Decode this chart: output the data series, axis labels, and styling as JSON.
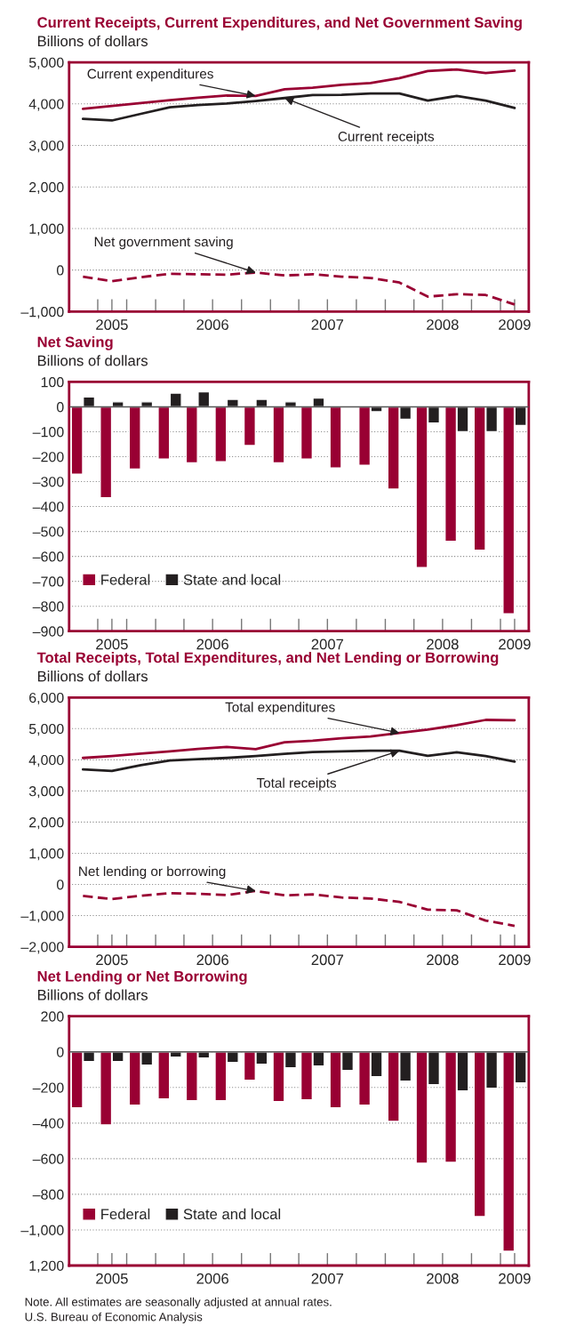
{
  "chart_data": [
    {
      "type": "line",
      "title": "Current Receipts, Current Expenditures, and Net Government Saving",
      "ylabel": "Billions of dollars",
      "x": [
        "2005-05-15",
        "2005-08-15",
        "2005-11-15",
        "2006-02-15",
        "2006-05-15",
        "2006-08-15",
        "2006-11-15",
        "2007-02-15",
        "2007-05-15",
        "2007-08-15",
        "2007-11-15",
        "2008-02-15",
        "2008-05-15",
        "2008-08-15",
        "2008-11-15",
        "2009-02-15"
      ],
      "series": [
        {
          "color": "#990033",
          "line_style": "solid",
          "values": [
            3880,
            3950,
            4020,
            4090,
            4150,
            4200,
            4190,
            4350,
            4390,
            4460,
            4500,
            4620,
            4790,
            4830,
            4740,
            4800
          ]
        },
        {
          "color": "#231f20",
          "line_style": "solid",
          "values": [
            3640,
            3600,
            3760,
            3920,
            3970,
            4010,
            4070,
            4140,
            4210,
            4220,
            4250,
            4250,
            4080,
            4190,
            4080,
            3900
          ]
        },
        {
          "color": "#990033",
          "line_style": "dashed",
          "values": [
            -160,
            -270,
            -170,
            -90,
            -100,
            -110,
            -60,
            -130,
            -100,
            -160,
            -190,
            -300,
            -640,
            -580,
            -600,
            -830
          ]
        }
      ],
      "xlim": [
        "2005-04-01",
        "2009-04-01"
      ],
      "xticks": [
        {
          "value": "2005-08-15",
          "label": "2005"
        },
        {
          "value": "2006-07-01",
          "label": "2006"
        },
        {
          "value": "2007-07-01",
          "label": "2007"
        },
        {
          "value": "2008-07-01",
          "label": "2008"
        },
        {
          "value": "2009-02-15",
          "label": "2009"
        },
        {
          "value": "2005-07-01",
          "label": null
        },
        {
          "value": "2005-10-01",
          "label": null
        },
        {
          "value": "2006-01-01",
          "label": null
        },
        {
          "value": "2006-04-01",
          "label": null
        },
        {
          "value": "2006-10-01",
          "label": null
        },
        {
          "value": "2007-01-01",
          "label": null
        },
        {
          "value": "2007-04-01",
          "label": null
        },
        {
          "value": "2007-10-01",
          "label": null
        },
        {
          "value": "2008-01-01",
          "label": null
        },
        {
          "value": "2008-04-01",
          "label": null
        },
        {
          "value": "2008-10-01",
          "label": null
        },
        {
          "value": "2009-01-01",
          "label": null
        }
      ],
      "ylim": [
        -1000,
        5000
      ],
      "yticks": [
        {
          "value": -1000,
          "label": "–1,000"
        },
        0,
        {
          "value": 1000,
          "label": "1,000"
        },
        {
          "value": 2000,
          "label": "2,000"
        },
        {
          "value": 3000,
          "label": "3,000"
        },
        {
          "value": 4000,
          "label": "4,000"
        },
        {
          "value": 5000,
          "label": "5,000"
        }
      ],
      "grid": "y",
      "annotations": [
        {
          "text": "Current expenditures",
          "x": "2006-11-15",
          "y": 4190
        },
        {
          "text": "Current receipts",
          "x": "2007-02-15",
          "y": 4140
        },
        {
          "text": "Net government saving",
          "x": "2006-11-15",
          "y": -60
        }
      ]
    },
    {
      "type": "bar",
      "title": "Net Saving",
      "ylabel": "Billions of dollars",
      "x": [
        "2005-05-15",
        "2005-08-15",
        "2005-11-15",
        "2006-02-15",
        "2006-05-15",
        "2006-08-15",
        "2006-11-15",
        "2007-02-15",
        "2007-05-15",
        "2007-08-15",
        "2007-11-15",
        "2008-02-15",
        "2008-05-15",
        "2008-08-15",
        "2008-11-15",
        "2009-02-15"
      ],
      "series": [
        {
          "name": "Federal",
          "color": "#990033",
          "values": [
            -270,
            -365,
            -250,
            -210,
            -225,
            -220,
            -155,
            -225,
            -210,
            -245,
            -235,
            -330,
            -645,
            -540,
            -575,
            -830
          ]
        },
        {
          "name": "State and local",
          "color": "#231f20",
          "values": [
            40,
            20,
            20,
            55,
            60,
            30,
            30,
            20,
            35,
            5,
            -20,
            -50,
            -65,
            -100,
            -100,
            -75
          ]
        }
      ],
      "xlim": [
        "2005-04-01",
        "2009-04-01"
      ],
      "xticks": [
        {
          "value": "2005-08-15",
          "label": "2005"
        },
        {
          "value": "2006-07-01",
          "label": "2006"
        },
        {
          "value": "2007-07-01",
          "label": "2007"
        },
        {
          "value": "2008-07-01",
          "label": "2008"
        },
        {
          "value": "2009-02-15",
          "label": "2009"
        },
        {
          "value": "2005-07-01",
          "label": null
        },
        {
          "value": "2005-10-01",
          "label": null
        },
        {
          "value": "2006-01-01",
          "label": null
        },
        {
          "value": "2006-04-01",
          "label": null
        },
        {
          "value": "2006-10-01",
          "label": null
        },
        {
          "value": "2007-01-01",
          "label": null
        },
        {
          "value": "2007-04-01",
          "label": null
        },
        {
          "value": "2007-10-01",
          "label": null
        },
        {
          "value": "2008-01-01",
          "label": null
        },
        {
          "value": "2008-04-01",
          "label": null
        },
        {
          "value": "2008-10-01",
          "label": null
        },
        {
          "value": "2009-01-01",
          "label": null
        }
      ],
      "ylim": [
        -900,
        100
      ],
      "yticks": [
        {
          "value": -900,
          "label": "–900"
        },
        {
          "value": -800,
          "label": "–800"
        },
        {
          "value": -700,
          "label": "–700"
        },
        {
          "value": -600,
          "label": "–600"
        },
        {
          "value": -500,
          "label": "–500"
        },
        {
          "value": -400,
          "label": "–400"
        },
        {
          "value": -300,
          "label": "–300"
        },
        {
          "value": -200,
          "label": "–200"
        },
        {
          "value": -100,
          "label": "–100"
        },
        0,
        100
      ],
      "grid": "y",
      "legend": "bottom left",
      "ref_lines": [
        {
          "axis": "y",
          "value": 0,
          "color": "#555555"
        }
      ]
    },
    {
      "type": "line",
      "title": "Total Receipts, Total Expenditures, and Net Lending or Borrowing",
      "ylabel": "Billions of dollars",
      "x": [
        "2005-05-15",
        "2005-08-15",
        "2005-11-15",
        "2006-02-15",
        "2006-05-15",
        "2006-08-15",
        "2006-11-15",
        "2007-02-15",
        "2007-05-15",
        "2007-08-15",
        "2007-11-15",
        "2008-02-15",
        "2008-05-15",
        "2008-08-15",
        "2008-11-15",
        "2009-02-15"
      ],
      "series": [
        {
          "color": "#990033",
          "line_style": "solid",
          "values": [
            4060,
            4120,
            4200,
            4270,
            4350,
            4410,
            4340,
            4560,
            4610,
            4690,
            4750,
            4860,
            4970,
            5110,
            5280,
            5270
          ]
        },
        {
          "color": "#231f20",
          "line_style": "solid",
          "values": [
            3690,
            3640,
            3830,
            3980,
            4020,
            4060,
            4120,
            4190,
            4250,
            4270,
            4290,
            4290,
            4130,
            4240,
            4120,
            3940
          ]
        },
        {
          "color": "#990033",
          "line_style": "dashed",
          "values": [
            -370,
            -470,
            -360,
            -280,
            -300,
            -340,
            -210,
            -350,
            -320,
            -420,
            -450,
            -560,
            -810,
            -830,
            -1160,
            -1330
          ]
        }
      ],
      "xlim": [
        "2005-04-01",
        "2009-04-01"
      ],
      "xticks": [
        {
          "value": "2005-08-15",
          "label": "2005"
        },
        {
          "value": "2006-07-01",
          "label": "2006"
        },
        {
          "value": "2007-07-01",
          "label": "2007"
        },
        {
          "value": "2008-07-01",
          "label": "2008"
        },
        {
          "value": "2009-02-15",
          "label": "2009"
        },
        {
          "value": "2005-07-01",
          "label": null
        },
        {
          "value": "2005-10-01",
          "label": null
        },
        {
          "value": "2006-01-01",
          "label": null
        },
        {
          "value": "2006-04-01",
          "label": null
        },
        {
          "value": "2006-10-01",
          "label": null
        },
        {
          "value": "2007-01-01",
          "label": null
        },
        {
          "value": "2007-04-01",
          "label": null
        },
        {
          "value": "2007-10-01",
          "label": null
        },
        {
          "value": "2008-01-01",
          "label": null
        },
        {
          "value": "2008-04-01",
          "label": null
        },
        {
          "value": "2008-10-01",
          "label": null
        },
        {
          "value": "2009-01-01",
          "label": null
        }
      ],
      "ylim": [
        -2000,
        6000
      ],
      "yticks": [
        {
          "value": -2000,
          "label": "–2,000"
        },
        {
          "value": -1000,
          "label": "–1,000"
        },
        0,
        {
          "value": 1000,
          "label": "1,000"
        },
        {
          "value": 2000,
          "label": "2,000"
        },
        {
          "value": 3000,
          "label": "3,000"
        },
        {
          "value": 4000,
          "label": "4,000"
        },
        {
          "value": 5000,
          "label": "5,000"
        },
        {
          "value": 6000,
          "label": "6,000"
        }
      ],
      "grid": "y",
      "annotations": [
        {
          "text": "Total expenditures",
          "x": "2008-02-15",
          "y": 4860
        },
        {
          "text": "Total receipts",
          "x": "2008-02-15",
          "y": 4290
        },
        {
          "text": "Net lending or borrowing",
          "x": "2006-11-15",
          "y": -210
        }
      ]
    },
    {
      "type": "bar",
      "title": "Net Lending or Net Borrowing",
      "ylabel": "Billions of dollars",
      "x": [
        "2005-05-15",
        "2005-08-15",
        "2005-11-15",
        "2006-02-15",
        "2006-05-15",
        "2006-08-15",
        "2006-11-15",
        "2007-02-15",
        "2007-05-15",
        "2007-08-15",
        "2007-11-15",
        "2008-02-15",
        "2008-05-15",
        "2008-08-15",
        "2008-11-15",
        "2009-02-15"
      ],
      "series": [
        {
          "name": "Federal",
          "color": "#990033",
          "values": [
            -315,
            -410,
            -300,
            -265,
            -275,
            -275,
            -160,
            -280,
            -270,
            -315,
            -300,
            -390,
            -625,
            -620,
            -925,
            -1120
          ]
        },
        {
          "name": "State and local",
          "color": "#231f20",
          "values": [
            -55,
            -55,
            -75,
            -30,
            -35,
            -60,
            -70,
            -90,
            -80,
            -105,
            -140,
            -165,
            -185,
            -220,
            -205,
            -175
          ]
        }
      ],
      "xlim": [
        "2005-04-01",
        "2009-04-01"
      ],
      "xticks": [
        {
          "value": "2005-08-15",
          "label": "2005"
        },
        {
          "value": "2006-07-01",
          "label": "2006"
        },
        {
          "value": "2007-07-01",
          "label": "2007"
        },
        {
          "value": "2008-07-01",
          "label": "2008"
        },
        {
          "value": "2009-02-15",
          "label": "2009"
        },
        {
          "value": "2005-07-01",
          "label": null
        },
        {
          "value": "2005-10-01",
          "label": null
        },
        {
          "value": "2006-01-01",
          "label": null
        },
        {
          "value": "2006-04-01",
          "label": null
        },
        {
          "value": "2006-10-01",
          "label": null
        },
        {
          "value": "2007-01-01",
          "label": null
        },
        {
          "value": "2007-04-01",
          "label": null
        },
        {
          "value": "2007-10-01",
          "label": null
        },
        {
          "value": "2008-01-01",
          "label": null
        },
        {
          "value": "2008-04-01",
          "label": null
        },
        {
          "value": "2008-10-01",
          "label": null
        },
        {
          "value": "2009-01-01",
          "label": null
        }
      ],
      "ylim": [
        -1200,
        200
      ],
      "yticks": [
        {
          "value": -1200,
          "label": "1,200"
        },
        {
          "value": -1000,
          "label": "–1,000"
        },
        {
          "value": -800,
          "label": "–800"
        },
        {
          "value": -600,
          "label": "–600"
        },
        {
          "value": -400,
          "label": "–400"
        },
        {
          "value": -200,
          "label": "–200"
        },
        0,
        200
      ],
      "grid": "y",
      "legend": "bottom left",
      "ref_lines": [
        {
          "axis": "y",
          "value": 0,
          "color": "#555555"
        }
      ],
      "annotations": [
        "Note. All estimates are seasonally adjusted at annual rates.",
        "U.S. Bureau of Economic Analysis"
      ]
    }
  ]
}
